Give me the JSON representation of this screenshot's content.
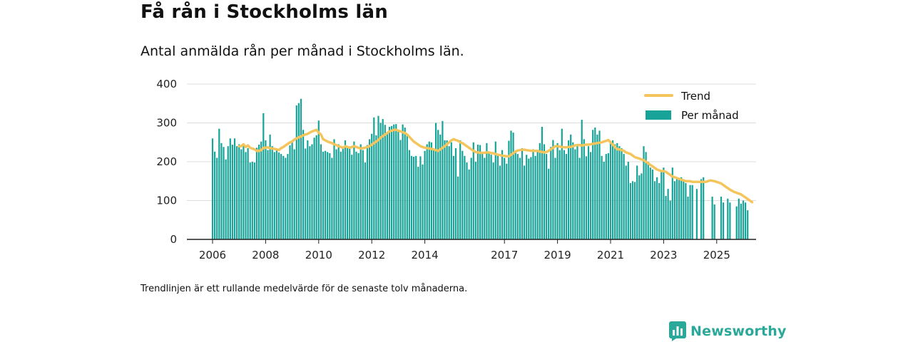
{
  "title": "Få rån i Stockholms län",
  "subtitle": "Antal anmälda rån per månad i Stockholms län.",
  "footnote": "Trendlinjen är ett rullande medelvärde för de senaste tolv månaderna.",
  "brand": {
    "name": "Newsworthy"
  },
  "colors": {
    "bars": "#17a398",
    "trend": "#f4c55c",
    "grid": "#dddddd",
    "axis": "#222222",
    "brand": "#2aa89a"
  },
  "chart_data": {
    "type": "bar",
    "legend": {
      "position": "top-right",
      "entries": [
        "Trend",
        "Per månad"
      ]
    },
    "grid": true,
    "ylim": [
      0,
      400
    ],
    "y_ticks": [
      0,
      100,
      200,
      300,
      400
    ],
    "x_ticks": [
      "2006",
      "2008",
      "2010",
      "2012",
      "2014",
      "2017",
      "2019",
      "2021",
      "2023",
      "2025"
    ],
    "start_month": "2006-01",
    "series": [
      {
        "name": "Per månad",
        "values": [
          260,
          226,
          210,
          285,
          248,
          238,
          206,
          240,
          260,
          244,
          260,
          240,
          245,
          232,
          245,
          225,
          235,
          198,
          200,
          198,
          236,
          244,
          252,
          325,
          255,
          230,
          270,
          240,
          225,
          233,
          224,
          220,
          215,
          210,
          220,
          242,
          255,
          232,
          345,
          351,
          362,
          282,
          234,
          255,
          240,
          245,
          262,
          268,
          306,
          245,
          226,
          228,
          225,
          222,
          210,
          258,
          232,
          245,
          226,
          235,
          255,
          240,
          236,
          218,
          252,
          226,
          222,
          245,
          230,
          198,
          243,
          258,
          272,
          314,
          268,
          318,
          300,
          310,
          295,
          275,
          290,
          292,
          296,
          297,
          280,
          256,
          296,
          288,
          272,
          230,
          215,
          213,
          215,
          187,
          214,
          193,
          228,
          245,
          252,
          250,
          232,
          300,
          282,
          270,
          305,
          255,
          255,
          240,
          250,
          215,
          235,
          162,
          255,
          228,
          215,
          198,
          180,
          210,
          250,
          200,
          244,
          243,
          225,
          210,
          248,
          221,
          218,
          198,
          252,
          218,
          190,
          230,
          210,
          195,
          254,
          280,
          275,
          225,
          220,
          210,
          235,
          190,
          218,
          208,
          212,
          232,
          215,
          225,
          248,
          290,
          245,
          220,
          182,
          238,
          256,
          210,
          248,
          230,
          285,
          230,
          220,
          255,
          270,
          250,
          232,
          240,
          210,
          308,
          258,
          214,
          240,
          225,
          282,
          288,
          270,
          280,
          215,
          200,
          220,
          222,
          250,
          255,
          245,
          248,
          240,
          235,
          220,
          190,
          200,
          145,
          150,
          148,
          190,
          165,
          170,
          240,
          225,
          200,
          185,
          180,
          150,
          160,
          145,
          175,
          185,
          112,
          130,
          100,
          185,
          150,
          160,
          155,
          160,
          155,
          145,
          110,
          140,
          140,
          0,
          130,
          0,
          155,
          160,
          0,
          0,
          0,
          110,
          90,
          0,
          0,
          110,
          95,
          0,
          105,
          95,
          0,
          0,
          85,
          105,
          92,
          100,
          95,
          75
        ]
      },
      {
        "name": "Trend",
        "values": [
          null,
          null,
          null,
          null,
          null,
          null,
          null,
          null,
          null,
          null,
          null,
          null,
          240,
          240,
          245,
          238,
          242,
          236,
          234,
          232,
          228,
          228,
          230,
          236,
          236,
          237,
          235,
          234,
          233,
          232,
          230,
          235,
          238,
          242,
          246,
          250,
          252,
          257,
          260,
          263,
          265,
          268,
          270,
          272,
          275,
          278,
          280,
          282,
          275,
          270,
          258,
          255,
          252,
          250,
          248,
          245,
          243,
          240,
          238,
          236,
          240,
          238,
          236,
          238,
          240,
          238,
          236,
          234,
          235,
          236,
          238,
          240,
          244,
          248,
          252,
          256,
          262,
          266,
          270,
          274,
          278,
          280,
          282,
          282,
          280,
          278,
          276,
          274,
          270,
          264,
          258,
          252,
          248,
          244,
          240,
          238,
          236,
          235,
          234,
          233,
          232,
          230,
          228,
          232,
          236,
          240,
          245,
          250,
          255,
          258,
          256,
          254,
          250,
          248,
          244,
          240,
          236,
          232,
          228,
          225,
          224,
          223,
          223,
          223,
          224,
          224,
          222,
          222,
          220,
          218,
          217,
          216,
          215,
          214,
          214,
          218,
          222,
          226,
          229,
          230,
          231,
          231,
          230,
          229,
          228,
          228,
          228,
          228,
          226,
          225,
          224,
          225,
          228,
          232,
          236,
          240,
          240,
          239,
          238,
          237,
          237,
          238,
          238,
          240,
          242,
          243,
          243,
          242,
          243,
          244,
          244,
          245,
          246,
          247,
          248,
          249,
          250,
          252,
          254,
          256,
          250,
          244,
          238,
          232,
          232,
          230,
          228,
          224,
          222,
          220,
          216,
          212,
          210,
          208,
          206,
          204,
          200,
          196,
          192,
          188,
          184,
          180,
          178,
          176,
          176,
          174,
          170,
          166,
          162,
          160,
          158,
          156,
          154,
          152,
          150,
          150,
          150,
          148,
          148,
          148,
          148,
          148,
          148,
          148,
          150,
          152,
          151,
          150,
          148,
          146,
          144,
          140,
          136,
          132,
          128,
          125,
          122,
          120,
          118,
          116,
          112,
          108,
          104,
          100,
          96
        ]
      }
    ]
  }
}
